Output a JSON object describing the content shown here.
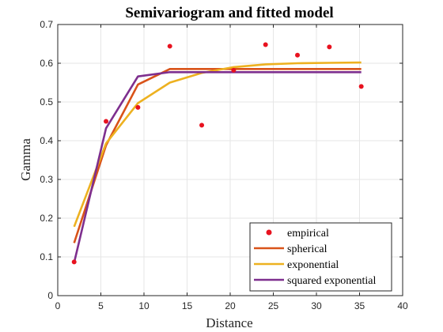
{
  "chart_data": {
    "type": "line",
    "title": "Semivariogram and fitted model",
    "xlabel": "Distance",
    "ylabel": "Gamma",
    "xlim": [
      0,
      40
    ],
    "ylim": [
      0,
      0.7
    ],
    "xticks": [
      0,
      5,
      10,
      15,
      20,
      25,
      30,
      35,
      40
    ],
    "yticks": [
      0,
      0.1,
      0.2,
      0.3,
      0.4,
      0.5,
      0.6,
      0.7
    ],
    "grid": true,
    "legend_position": "bottom-right",
    "x": [
      1.9,
      5.6,
      9.3,
      13.0,
      16.7,
      20.4,
      24.1,
      27.8,
      31.5,
      35.2
    ],
    "series": [
      {
        "name": "empirical",
        "kind": "scatter",
        "color": "#e8121f",
        "values": [
          0.087,
          0.45,
          0.486,
          0.644,
          0.44,
          0.582,
          0.648,
          0.621,
          0.642,
          0.54
        ]
      },
      {
        "name": "spherical",
        "kind": "line",
        "color": "#d95319",
        "values": [
          0.136,
          0.388,
          0.545,
          0.585,
          0.585,
          0.585,
          0.585,
          0.585,
          0.585,
          0.585
        ]
      },
      {
        "name": "exponential",
        "kind": "line",
        "color": "#edb120",
        "values": [
          0.178,
          0.393,
          0.497,
          0.55,
          0.575,
          0.59,
          0.597,
          0.6,
          0.601,
          0.602
        ]
      },
      {
        "name": "squared exponential",
        "kind": "line",
        "color": "#7e2f8e",
        "values": [
          0.085,
          0.432,
          0.566,
          0.577,
          0.577,
          0.577,
          0.577,
          0.577,
          0.577,
          0.577
        ]
      }
    ]
  }
}
